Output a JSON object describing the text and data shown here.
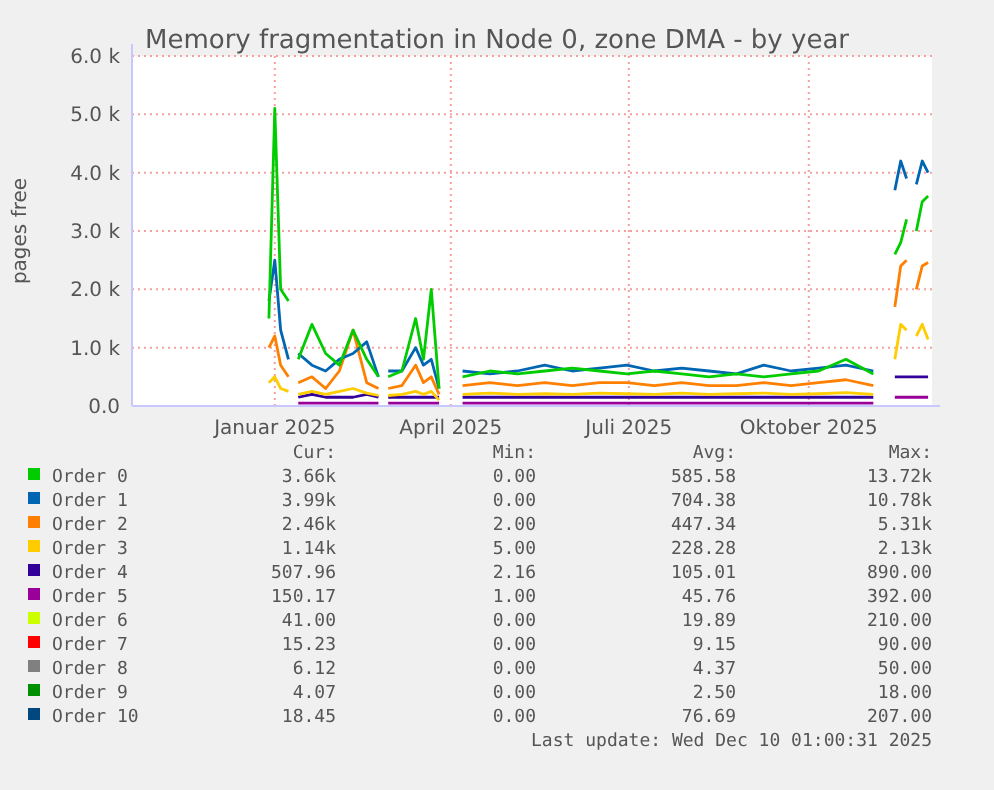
{
  "chart_data": {
    "type": "line",
    "title": "Memory fragmentation in Node 0, zone DMA - by year",
    "ylabel": "pages free",
    "x": [
      "2024-12-29",
      "2025-01-01",
      "2025-01-04",
      "2025-01-08",
      "2025-01-10",
      "2025-01-13",
      "2025-01-20",
      "2025-01-27",
      "2025-02-03",
      "2025-02-10",
      "2025-02-17",
      "2025-02-23",
      "2025-02-25",
      "2025-02-28",
      "2025-03-07",
      "2025-03-14",
      "2025-03-18",
      "2025-03-22",
      "2025-03-26",
      "2025-03-31",
      "2025-04-07",
      "2025-04-21",
      "2025-05-05",
      "2025-05-19",
      "2025-06-02",
      "2025-06-16",
      "2025-06-30",
      "2025-07-14",
      "2025-07-28",
      "2025-08-11",
      "2025-08-25",
      "2025-09-08",
      "2025-09-22",
      "2025-10-06",
      "2025-10-20",
      "2025-11-03",
      "2025-11-09",
      "2025-11-14",
      "2025-11-17",
      "2025-11-20",
      "2025-11-22",
      "2025-11-25",
      "2025-11-28",
      "2025-12-01"
    ],
    "xlim": [
      "2024-10-20",
      "2025-12-03"
    ],
    "xticks": [
      {
        "value": "2025-01-01",
        "label": "Januar 2025"
      },
      {
        "value": "2025-04-01",
        "label": "April 2025"
      },
      {
        "value": "2025-07-01",
        "label": "Juli 2025"
      },
      {
        "value": "2025-10-01",
        "label": "Oktober 2025"
      }
    ],
    "ylim": [
      0,
      6000
    ],
    "yticks": [
      {
        "value": 0,
        "label": "0.0"
      },
      {
        "value": 1000,
        "label": "1.0 k"
      },
      {
        "value": 2000,
        "label": "2.0 k"
      },
      {
        "value": 3000,
        "label": "3.0 k"
      },
      {
        "value": 4000,
        "label": "4.0 k"
      },
      {
        "value": 5000,
        "label": "5.0 k"
      },
      {
        "value": 6000,
        "label": "6.0 k"
      }
    ],
    "grid": true,
    "legend": "bottom",
    "marker": "none",
    "line_style": "solid",
    "series": [
      {
        "name": "Order 0",
        "color": "#00cc00",
        "values": [
          1500,
          5100,
          2000,
          1800,
          null,
          800,
          1400,
          900,
          700,
          1300,
          800,
          500,
          null,
          500,
          600,
          1500,
          800,
          2000,
          300,
          null,
          500,
          600,
          550,
          600,
          650,
          600,
          550,
          600,
          550,
          500,
          550,
          500,
          550,
          600,
          800,
          550,
          null,
          2600,
          2800,
          3200,
          null,
          3000,
          3500,
          3600
        ]
      },
      {
        "name": "Order 1",
        "color": "#0066b3",
        "values": [
          1800,
          2500,
          1300,
          800,
          null,
          900,
          700,
          600,
          800,
          900,
          1100,
          500,
          null,
          600,
          600,
          1000,
          700,
          800,
          300,
          null,
          600,
          550,
          600,
          700,
          600,
          650,
          700,
          600,
          650,
          600,
          550,
          700,
          600,
          650,
          700,
          600,
          null,
          3700,
          4200,
          3900,
          null,
          3800,
          4200,
          4000
        ]
      },
      {
        "name": "Order 2",
        "color": "#ff8000",
        "values": [
          1000,
          1200,
          700,
          500,
          null,
          400,
          500,
          300,
          600,
          1300,
          400,
          300,
          null,
          300,
          350,
          700,
          400,
          500,
          200,
          null,
          350,
          400,
          350,
          400,
          350,
          400,
          400,
          350,
          400,
          350,
          350,
          400,
          350,
          400,
          450,
          350,
          null,
          1700,
          2400,
          2500,
          null,
          2000,
          2400,
          2460
        ]
      },
      {
        "name": "Order 3",
        "color": "#ffcc00",
        "values": [
          400,
          500,
          300,
          250,
          null,
          200,
          250,
          200,
          250,
          300,
          220,
          180,
          null,
          180,
          200,
          250,
          200,
          250,
          100,
          null,
          200,
          220,
          200,
          210,
          200,
          220,
          210,
          200,
          220,
          200,
          210,
          220,
          200,
          210,
          230,
          200,
          null,
          800,
          1400,
          1300,
          null,
          1200,
          1400,
          1140
        ]
      },
      {
        "name": "Order 4",
        "color": "#330099",
        "values": [
          null,
          null,
          null,
          null,
          null,
          150,
          200,
          150,
          150,
          150,
          200,
          150,
          null,
          150,
          150,
          150,
          150,
          150,
          150,
          null,
          150,
          150,
          150,
          150,
          150,
          150,
          150,
          150,
          150,
          150,
          150,
          150,
          150,
          150,
          150,
          150,
          null,
          500,
          500,
          500,
          500,
          500,
          500,
          500
        ]
      },
      {
        "name": "Order 5",
        "color": "#990099",
        "values": [
          null,
          null,
          null,
          null,
          null,
          50,
          50,
          50,
          50,
          50,
          50,
          50,
          null,
          50,
          50,
          50,
          50,
          50,
          50,
          null,
          50,
          50,
          50,
          50,
          50,
          50,
          50,
          50,
          50,
          50,
          50,
          50,
          50,
          50,
          50,
          50,
          null,
          150,
          150,
          150,
          150,
          150,
          150,
          150
        ]
      },
      {
        "name": "Order 6",
        "color": "#ccff00",
        "values": [
          null,
          null,
          null,
          null,
          null,
          null,
          null,
          null,
          null,
          null,
          null,
          null,
          null,
          null,
          null,
          null,
          null,
          null,
          null,
          null,
          null,
          null,
          null,
          null,
          null,
          null,
          null,
          null,
          null,
          null,
          null,
          null,
          null,
          null,
          null,
          null,
          null,
          null,
          null,
          null,
          null,
          null,
          null,
          null
        ]
      },
      {
        "name": "Order 7",
        "color": "#ff0000",
        "values": [
          null,
          null,
          null,
          null,
          null,
          null,
          null,
          null,
          null,
          null,
          null,
          null,
          null,
          null,
          null,
          null,
          null,
          null,
          null,
          null,
          null,
          null,
          null,
          null,
          null,
          null,
          null,
          null,
          null,
          null,
          null,
          null,
          null,
          null,
          null,
          null,
          null,
          null,
          null,
          null,
          null,
          null,
          null,
          null
        ]
      },
      {
        "name": "Order 8",
        "color": "#808080",
        "values": [
          null,
          null,
          null,
          null,
          null,
          null,
          null,
          null,
          null,
          null,
          null,
          null,
          null,
          null,
          null,
          null,
          null,
          null,
          null,
          null,
          null,
          null,
          null,
          null,
          null,
          null,
          null,
          null,
          null,
          null,
          null,
          null,
          null,
          null,
          null,
          null,
          null,
          null,
          null,
          null,
          null,
          null,
          null,
          null
        ]
      },
      {
        "name": "Order 9",
        "color": "#008f00",
        "values": [
          null,
          null,
          null,
          null,
          null,
          null,
          null,
          null,
          null,
          null,
          null,
          null,
          null,
          null,
          null,
          null,
          null,
          null,
          null,
          null,
          null,
          null,
          null,
          null,
          null,
          null,
          null,
          null,
          null,
          null,
          null,
          null,
          null,
          null,
          null,
          null,
          null,
          null,
          null,
          null,
          null,
          null,
          null,
          null
        ]
      },
      {
        "name": "Order 10",
        "color": "#00487d",
        "values": [
          null,
          null,
          null,
          null,
          null,
          null,
          null,
          null,
          null,
          null,
          null,
          null,
          null,
          null,
          null,
          null,
          null,
          null,
          null,
          null,
          null,
          null,
          null,
          null,
          null,
          null,
          null,
          null,
          null,
          null,
          null,
          null,
          null,
          null,
          null,
          null,
          null,
          null,
          null,
          null,
          null,
          null,
          null,
          null
        ]
      }
    ],
    "annotations": [
      "Cur:",
      "Min:",
      "Avg:",
      "Max:",
      "3.66k",
      "0.00",
      "585.58",
      "13.72k",
      "3.99k",
      "0.00",
      "704.38",
      "10.78k",
      "2.46k",
      "2.00",
      "447.34",
      "5.31k",
      "1.14k",
      "5.00",
      "228.28",
      "2.13k",
      "507.96",
      "2.16",
      "105.01",
      "890.00",
      "150.17",
      "1.00",
      "45.76",
      "392.00",
      "41.00",
      "0.00",
      "19.89",
      "210.00",
      "15.23",
      "0.00",
      "9.15",
      "90.00",
      "6.12",
      "0.00",
      "4.37",
      "50.00",
      "4.07",
      "0.00",
      "2.50",
      "18.00",
      "18.45",
      "0.00",
      "76.69",
      "207.00",
      "Last update: Wed Dec 10 01:00:31 2025"
    ]
  }
}
